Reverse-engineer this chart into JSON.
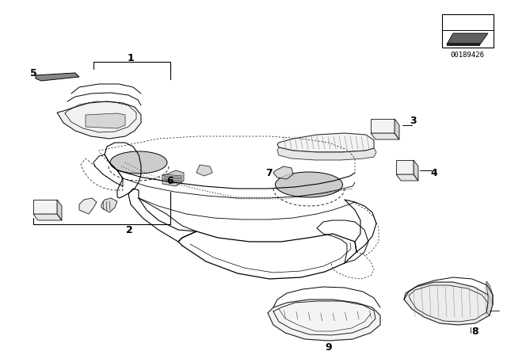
{
  "bg_color": "#ffffff",
  "line_color": "#000000",
  "fig_width": 6.4,
  "fig_height": 4.48,
  "dpi": 100,
  "doc_number": "00189426"
}
